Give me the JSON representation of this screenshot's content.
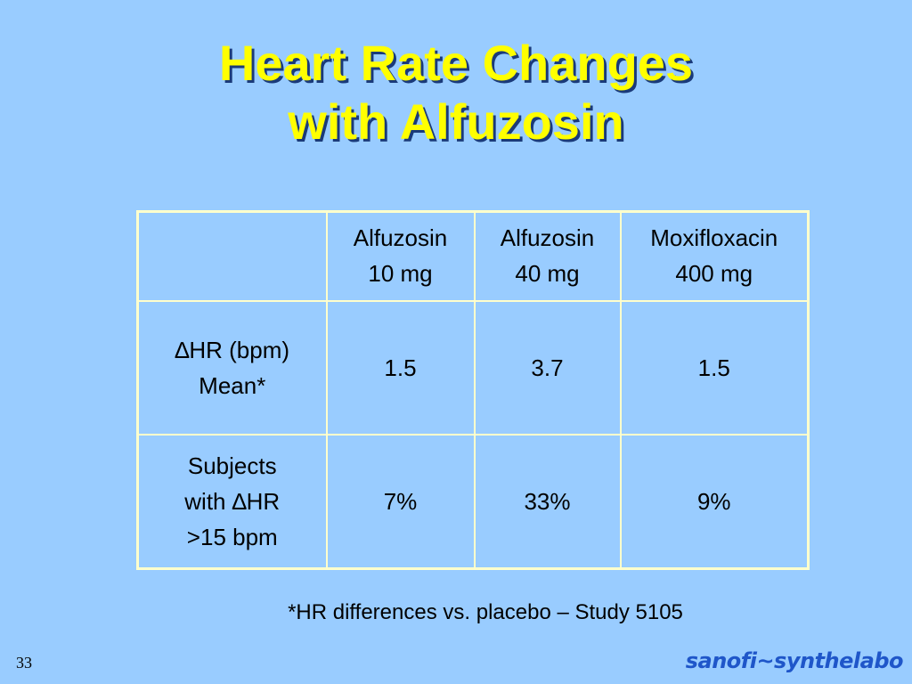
{
  "slide": {
    "title_line1": "Heart Rate Changes",
    "title_line2": "with Alfuzosin",
    "slide_number": "33",
    "footnote": "*HR differences vs. placebo – Study 5105",
    "logo_text": "sanofi~synthelabo"
  },
  "colors": {
    "background": "#99ccff",
    "title": "#ffff00",
    "border": "#ffffcc",
    "logo": "#1f56c9"
  },
  "table": {
    "header": [
      "",
      [
        "Alfuzosin",
        "10 mg"
      ],
      [
        "Alfuzosin",
        "40 mg"
      ],
      [
        "Moxifloxacin",
        "400 mg"
      ]
    ],
    "rows": [
      {
        "label": [
          "∆HR (bpm)",
          "Mean*"
        ],
        "values": [
          "1.5",
          "3.7",
          "1.5"
        ]
      },
      {
        "label": [
          "Subjects",
          "with  ∆HR",
          ">15 bpm"
        ],
        "values": [
          "7%",
          "33%",
          "9%"
        ]
      }
    ]
  }
}
